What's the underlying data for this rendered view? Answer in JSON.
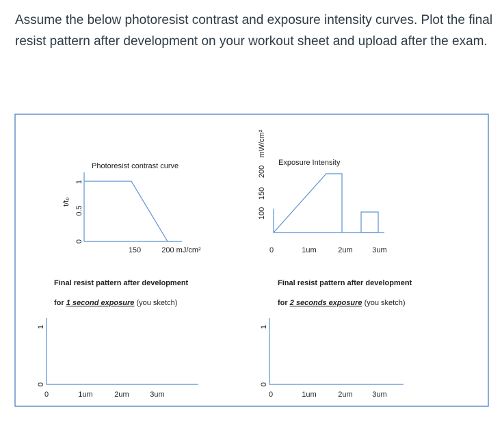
{
  "question": "Assume the below photoresist contrast and exposure intensity curves. Plot the final resist pattern after development on your workout sheet and upload after the exam.",
  "contrast_curve": {
    "title": "Photoresist contrast curve",
    "y_label": "t/t₀",
    "y_ticks": [
      "0",
      "0.5",
      "1"
    ],
    "x_ticks": [
      "150",
      "200 mJ/cm²"
    ]
  },
  "exposure_intensity": {
    "title": "Exposure Intensity",
    "y_label": "mW/cm²",
    "y_ticks": [
      "100",
      "150",
      "200"
    ],
    "x_ticks": [
      "0",
      "1um",
      "2um",
      "3um"
    ]
  },
  "sketch_1": {
    "title": "Final resist pattern after development",
    "prefix": "for",
    "emphasis": "1 second exposure",
    "suffix": "(you sketch)",
    "y_ticks": [
      "1",
      "0"
    ],
    "x_ticks": [
      "0",
      "1um",
      "2um",
      "3um"
    ]
  },
  "sketch_2": {
    "title": "Final resist pattern after development",
    "prefix": "for",
    "emphasis": "2 seconds exposure",
    "suffix": "(you sketch)",
    "y_ticks": [
      "1",
      "0"
    ],
    "x_ticks": [
      "0",
      "1um",
      "2um",
      "3um"
    ]
  }
}
